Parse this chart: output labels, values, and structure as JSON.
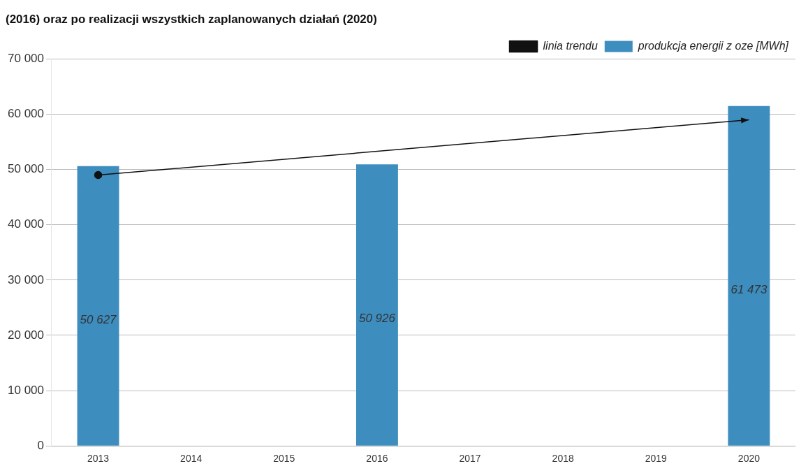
{
  "chart_data": {
    "type": "bar",
    "title": "(2016) oraz po realizacji wszystkich zaplanowanych działań (2020)",
    "categories": [
      "2013",
      "2014",
      "2015",
      "2016",
      "2017",
      "2018",
      "2019",
      "2020"
    ],
    "series": [
      {
        "name": "produkcja energii z oze [MWh]",
        "color": "#3d8dbf",
        "values": [
          50627,
          null,
          null,
          50926,
          null,
          null,
          null,
          61473
        ],
        "value_labels": [
          "50 627",
          null,
          null,
          "50 926",
          null,
          null,
          null,
          "61 473"
        ]
      },
      {
        "name": "linia trendu",
        "type": "line",
        "color": "#111111",
        "marker": "circle",
        "values": [
          49000,
          null,
          null,
          null,
          null,
          null,
          null,
          59000
        ]
      }
    ],
    "ylim": [
      0,
      70000
    ],
    "yticks": [
      {
        "value": 0,
        "label": "0"
      },
      {
        "value": 10000,
        "label": "10 000"
      },
      {
        "value": 20000,
        "label": "20 000"
      },
      {
        "value": 30000,
        "label": "30 000"
      },
      {
        "value": 40000,
        "label": "40 000"
      },
      {
        "value": 50000,
        "label": "50 000"
      },
      {
        "value": 60000,
        "label": "60 000"
      },
      {
        "value": 70000,
        "label": "70 000"
      }
    ],
    "grid": "y",
    "legend": "top right"
  }
}
